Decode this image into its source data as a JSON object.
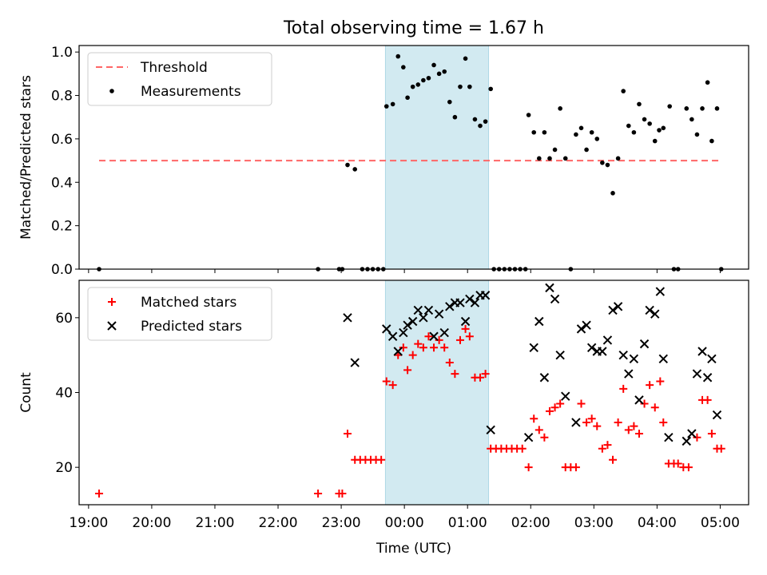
{
  "figure": {
    "title": "Total observing time = 1.67 h"
  },
  "chart_data": [
    {
      "type": "scatter",
      "ylabel": "Matched/Predicted stars",
      "xlim": [
        18.85,
        5.45
      ],
      "ylim": [
        0,
        1.03
      ],
      "yticks": [
        0.0,
        0.2,
        0.4,
        0.6,
        0.8,
        1.0
      ],
      "ytick_labels": [
        "0.0",
        "0.2",
        "0.4",
        "0.6",
        "0.8",
        "1.0"
      ],
      "grid": false,
      "legend": {
        "placement": "upper-left",
        "entries": [
          "Threshold",
          "Measurements"
        ]
      },
      "shaded_region": {
        "x_start": "23:42",
        "x_end": "01:20",
        "color": "#add8e6"
      },
      "threshold": {
        "name": "Threshold",
        "y": 0.5,
        "x_start": "19:10",
        "x_end": "05:00",
        "color": "#ff6666",
        "style": "dashed"
      },
      "series": [
        {
          "name": "Measurements",
          "color": "#000000",
          "marker": "dot",
          "points": [
            [
              "19:10",
              0.0
            ],
            [
              "22:38",
              0.0
            ],
            [
              "22:58",
              0.0
            ],
            [
              "23:01",
              0.0
            ],
            [
              "23:06",
              0.48
            ],
            [
              "23:13",
              0.46
            ],
            [
              "23:20",
              0.0
            ],
            [
              "23:25",
              0.0
            ],
            [
              "23:30",
              0.0
            ],
            [
              "23:35",
              0.0
            ],
            [
              "23:40",
              0.0
            ],
            [
              "23:43",
              0.75
            ],
            [
              "23:49",
              0.76
            ],
            [
              "23:54",
              0.98
            ],
            [
              "23:59",
              0.93
            ],
            [
              "00:03",
              0.79
            ],
            [
              "00:08",
              0.84
            ],
            [
              "00:13",
              0.85
            ],
            [
              "00:18",
              0.87
            ],
            [
              "00:23",
              0.88
            ],
            [
              "00:28",
              0.94
            ],
            [
              "00:33",
              0.9
            ],
            [
              "00:38",
              0.91
            ],
            [
              "00:43",
              0.77
            ],
            [
              "00:48",
              0.7
            ],
            [
              "00:53",
              0.84
            ],
            [
              "00:58",
              0.97
            ],
            [
              "01:02",
              0.84
            ],
            [
              "01:07",
              0.69
            ],
            [
              "01:12",
              0.66
            ],
            [
              "01:17",
              0.68
            ],
            [
              "01:22",
              0.83
            ],
            [
              "01:25",
              0.0
            ],
            [
              "01:30",
              0.0
            ],
            [
              "01:35",
              0.0
            ],
            [
              "01:40",
              0.0
            ],
            [
              "01:45",
              0.0
            ],
            [
              "01:50",
              0.0
            ],
            [
              "01:55",
              0.0
            ],
            [
              "01:58",
              0.71
            ],
            [
              "02:03",
              0.63
            ],
            [
              "02:08",
              0.51
            ],
            [
              "02:13",
              0.63
            ],
            [
              "02:18",
              0.51
            ],
            [
              "02:23",
              0.55
            ],
            [
              "02:28",
              0.74
            ],
            [
              "02:33",
              0.51
            ],
            [
              "02:38",
              0.0
            ],
            [
              "02:43",
              0.62
            ],
            [
              "02:48",
              0.65
            ],
            [
              "02:53",
              0.55
            ],
            [
              "02:58",
              0.63
            ],
            [
              "03:03",
              0.6
            ],
            [
              "03:08",
              0.49
            ],
            [
              "03:13",
              0.48
            ],
            [
              "03:18",
              0.35
            ],
            [
              "03:23",
              0.51
            ],
            [
              "03:28",
              0.82
            ],
            [
              "03:33",
              0.66
            ],
            [
              "03:38",
              0.63
            ],
            [
              "03:43",
              0.76
            ],
            [
              "03:48",
              0.69
            ],
            [
              "03:53",
              0.67
            ],
            [
              "03:58",
              0.59
            ],
            [
              "04:02",
              0.64
            ],
            [
              "04:06",
              0.65
            ],
            [
              "04:12",
              0.75
            ],
            [
              "04:16",
              0.0
            ],
            [
              "04:20",
              0.0
            ],
            [
              "04:28",
              0.74
            ],
            [
              "04:33",
              0.69
            ],
            [
              "04:38",
              0.62
            ],
            [
              "04:43",
              0.74
            ],
            [
              "04:48",
              0.86
            ],
            [
              "04:52",
              0.59
            ],
            [
              "04:57",
              0.74
            ],
            [
              "05:01",
              0.0
            ]
          ]
        }
      ]
    },
    {
      "type": "scatter",
      "xlabel": "Time (UTC)",
      "ylabel": "Count",
      "xlim": [
        18.85,
        5.45
      ],
      "ylim": [
        10,
        70
      ],
      "xticks": [
        "19:00",
        "20:00",
        "21:00",
        "22:00",
        "23:00",
        "00:00",
        "01:00",
        "02:00",
        "03:00",
        "04:00",
        "05:00"
      ],
      "yticks": [
        20,
        40,
        60
      ],
      "ytick_labels": [
        "20",
        "40",
        "60"
      ],
      "grid": false,
      "legend": {
        "placement": "upper-left",
        "entries": [
          "Matched stars",
          "Predicted stars"
        ]
      },
      "shaded_region": {
        "x_start": "23:42",
        "x_end": "01:20",
        "color": "#add8e6"
      },
      "series": [
        {
          "name": "Matched stars",
          "color": "#ff0000",
          "marker": "plus",
          "points": [
            [
              "19:10",
              13
            ],
            [
              "22:38",
              13
            ],
            [
              "22:58",
              13
            ],
            [
              "23:01",
              13
            ],
            [
              "23:06",
              29
            ],
            [
              "23:13",
              22
            ],
            [
              "23:18",
              22
            ],
            [
              "23:23",
              22
            ],
            [
              "23:28",
              22
            ],
            [
              "23:33",
              22
            ],
            [
              "23:38",
              22
            ],
            [
              "23:43",
              43
            ],
            [
              "23:49",
              42
            ],
            [
              "23:54",
              50
            ],
            [
              "23:59",
              52
            ],
            [
              "00:03",
              46
            ],
            [
              "00:08",
              50
            ],
            [
              "00:13",
              53
            ],
            [
              "00:18",
              52
            ],
            [
              "00:23",
              55
            ],
            [
              "00:28",
              52
            ],
            [
              "00:33",
              54
            ],
            [
              "00:38",
              52
            ],
            [
              "00:43",
              48
            ],
            [
              "00:48",
              45
            ],
            [
              "00:53",
              54
            ],
            [
              "00:58",
              57
            ],
            [
              "01:02",
              55
            ],
            [
              "01:07",
              44
            ],
            [
              "01:12",
              44
            ],
            [
              "01:17",
              45
            ],
            [
              "01:22",
              25
            ],
            [
              "01:27",
              25
            ],
            [
              "01:32",
              25
            ],
            [
              "01:37",
              25
            ],
            [
              "01:42",
              25
            ],
            [
              "01:47",
              25
            ],
            [
              "01:52",
              25
            ],
            [
              "01:58",
              20
            ],
            [
              "02:03",
              33
            ],
            [
              "02:08",
              30
            ],
            [
              "02:13",
              28
            ],
            [
              "02:18",
              35
            ],
            [
              "02:23",
              36
            ],
            [
              "02:28",
              37
            ],
            [
              "02:33",
              20
            ],
            [
              "02:38",
              20
            ],
            [
              "02:43",
              20
            ],
            [
              "02:48",
              37
            ],
            [
              "02:53",
              32
            ],
            [
              "02:58",
              33
            ],
            [
              "03:03",
              31
            ],
            [
              "03:08",
              25
            ],
            [
              "03:13",
              26
            ],
            [
              "03:18",
              22
            ],
            [
              "03:23",
              32
            ],
            [
              "03:28",
              41
            ],
            [
              "03:33",
              30
            ],
            [
              "03:38",
              31
            ],
            [
              "03:43",
              29
            ],
            [
              "03:48",
              37
            ],
            [
              "03:53",
              42
            ],
            [
              "03:58",
              36
            ],
            [
              "04:03",
              43
            ],
            [
              "04:06",
              32
            ],
            [
              "04:11",
              21
            ],
            [
              "04:16",
              21
            ],
            [
              "04:20",
              21
            ],
            [
              "04:25",
              20
            ],
            [
              "04:30",
              20
            ],
            [
              "04:38",
              28
            ],
            [
              "04:43",
              38
            ],
            [
              "04:48",
              38
            ],
            [
              "04:52",
              29
            ],
            [
              "04:57",
              25
            ],
            [
              "05:01",
              25
            ]
          ]
        },
        {
          "name": "Predicted stars",
          "color": "#000000",
          "marker": "x",
          "points": [
            [
              "23:06",
              60
            ],
            [
              "23:13",
              48
            ],
            [
              "23:43",
              57
            ],
            [
              "23:49",
              55
            ],
            [
              "23:54",
              51
            ],
            [
              "23:59",
              56
            ],
            [
              "00:03",
              58
            ],
            [
              "00:08",
              59
            ],
            [
              "00:13",
              62
            ],
            [
              "00:18",
              60
            ],
            [
              "00:23",
              62
            ],
            [
              "00:28",
              55
            ],
            [
              "00:33",
              61
            ],
            [
              "00:38",
              56
            ],
            [
              "00:43",
              63
            ],
            [
              "00:48",
              64
            ],
            [
              "00:53",
              64
            ],
            [
              "00:58",
              59
            ],
            [
              "01:02",
              65
            ],
            [
              "01:07",
              64
            ],
            [
              "01:12",
              66
            ],
            [
              "01:17",
              66
            ],
            [
              "01:22",
              30
            ],
            [
              "01:58",
              28
            ],
            [
              "02:03",
              52
            ],
            [
              "02:08",
              59
            ],
            [
              "02:13",
              44
            ],
            [
              "02:18",
              68
            ],
            [
              "02:23",
              65
            ],
            [
              "02:28",
              50
            ],
            [
              "02:33",
              39
            ],
            [
              "02:43",
              32
            ],
            [
              "02:48",
              57
            ],
            [
              "02:53",
              58
            ],
            [
              "02:58",
              52
            ],
            [
              "03:03",
              51
            ],
            [
              "03:08",
              51
            ],
            [
              "03:13",
              54
            ],
            [
              "03:18",
              62
            ],
            [
              "03:23",
              63
            ],
            [
              "03:28",
              50
            ],
            [
              "03:33",
              45
            ],
            [
              "03:38",
              49
            ],
            [
              "03:43",
              38
            ],
            [
              "03:48",
              53
            ],
            [
              "03:53",
              62
            ],
            [
              "03:58",
              61
            ],
            [
              "04:03",
              67
            ],
            [
              "04:06",
              49
            ],
            [
              "04:11",
              28
            ],
            [
              "04:28",
              27
            ],
            [
              "04:33",
              29
            ],
            [
              "04:38",
              45
            ],
            [
              "04:43",
              51
            ],
            [
              "04:48",
              44
            ],
            [
              "04:52",
              49
            ],
            [
              "04:57",
              34
            ]
          ]
        }
      ]
    }
  ]
}
